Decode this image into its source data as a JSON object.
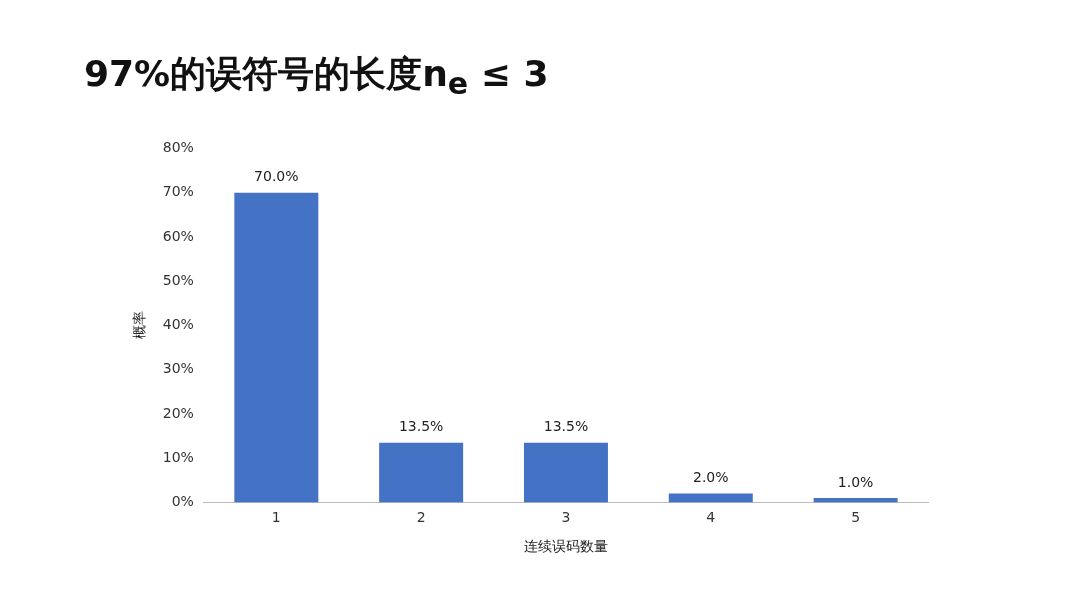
{
  "chart_data": {
    "type": "bar",
    "title": "97%的误符号的长度n$_{e}$ ≤ 3",
    "xlabel": "连续误码数量",
    "ylabel": "概率",
    "categories": [
      "1",
      "2",
      "3",
      "4",
      "5"
    ],
    "values": [
      70.0,
      13.5,
      13.5,
      2.0,
      1.0
    ],
    "value_labels": [
      "70.0%",
      "13.5%",
      "13.5%",
      "2.0%",
      "1.0%"
    ],
    "color": "#4472c4",
    "ylim": [
      0,
      80
    ],
    "yticks": [
      {
        "value": 0,
        "label": "0%"
      },
      {
        "value": 10,
        "label": "10%"
      },
      {
        "value": 20,
        "label": "20%"
      },
      {
        "value": 30,
        "label": "30%"
      },
      {
        "value": 40,
        "label": "40%"
      },
      {
        "value": 50,
        "label": "50%"
      },
      {
        "value": 60,
        "label": "60%"
      },
      {
        "value": 70,
        "label": "70%"
      },
      {
        "value": 80,
        "label": "80%"
      }
    ],
    "grid": false,
    "legend": false
  }
}
